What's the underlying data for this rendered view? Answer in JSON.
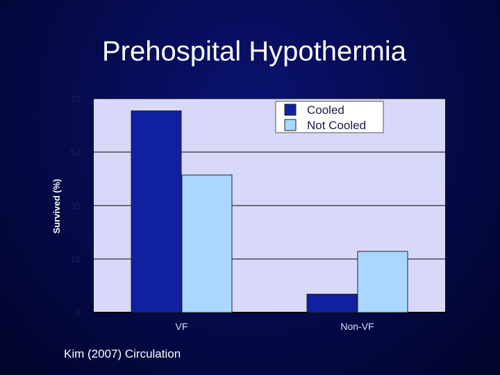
{
  "slide": {
    "title": "Prehospital Hypothermia",
    "source": "Kim (2007) Circulation"
  },
  "colors": {
    "background": "#050a4a",
    "plot_area": "#d8d8f8",
    "cooled": "#1020a0",
    "not_cooled": "#a8d8ff"
  },
  "chart_data": {
    "type": "bar",
    "ylabel": "Survived (%)",
    "ylim": [
      0,
      70
    ],
    "yticks": [
      "0",
      "18",
      "35",
      "53",
      "70"
    ],
    "yticks_values": [
      0,
      17.5,
      35,
      52.5,
      70
    ],
    "categories": [
      "VF",
      "Non-VF"
    ],
    "series": [
      {
        "name": "Cooled",
        "values": [
          66,
          6
        ]
      },
      {
        "name": "Not Cooled",
        "values": [
          45,
          20
        ]
      }
    ],
    "legend": "top-right",
    "grid": true
  }
}
